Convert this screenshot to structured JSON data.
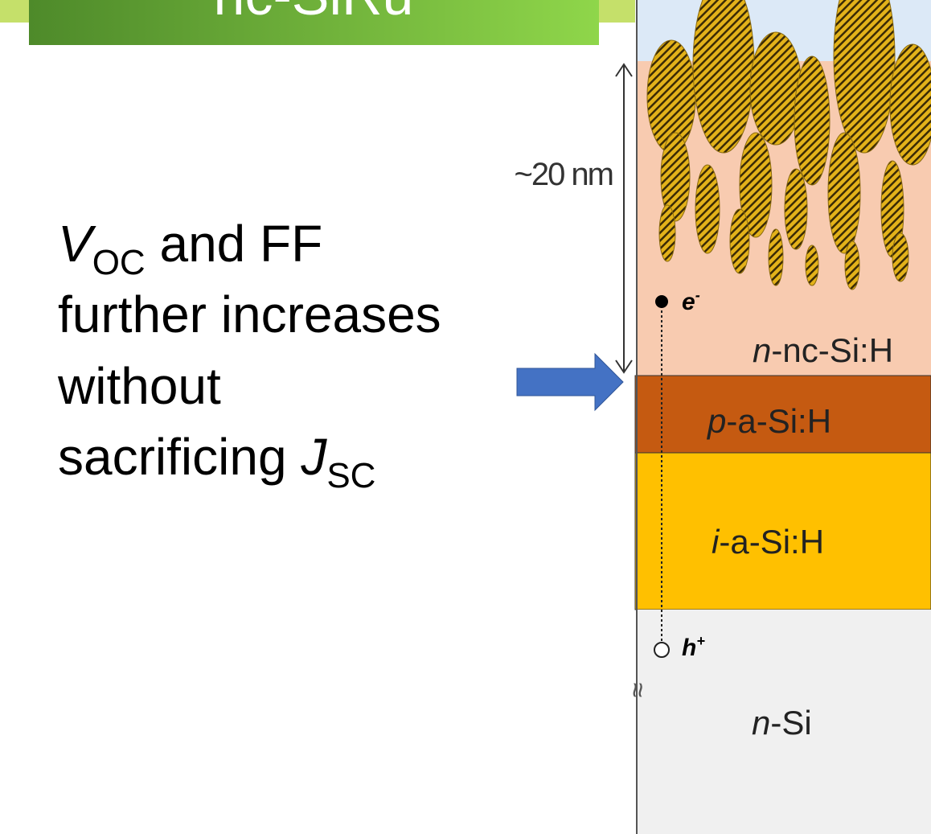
{
  "header": {
    "title": "nc-SiRu"
  },
  "statement": {
    "v": "V",
    "oc": "OC",
    "line1_rest": " and FF",
    "line2": "further increases",
    "line3": "without",
    "line4": "sacrificing ",
    "j": "J",
    "sc": "SC"
  },
  "diagram": {
    "thickness": "~20 nm",
    "electron": "e",
    "electron_sup": "-",
    "n_layer_italic": "n",
    "n_layer": "-nc-Si:H",
    "p_layer_italic": "p",
    "p_layer": "-a-Si:H",
    "i_layer_italic": "i",
    "i_layer": "-a-Si:H",
    "hole": "h",
    "hole_sup": "+",
    "break_mark": "≈",
    "sub_italic": "n",
    "sub": "-Si"
  }
}
